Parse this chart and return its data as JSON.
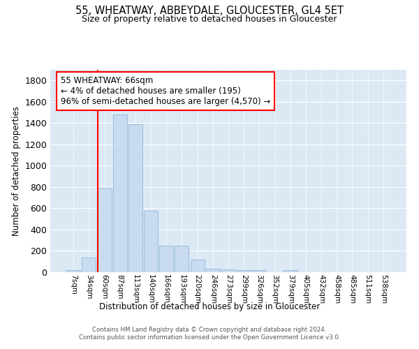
{
  "title": "55, WHEATWAY, ABBEYDALE, GLOUCESTER, GL4 5ET",
  "subtitle": "Size of property relative to detached houses in Gloucester",
  "xlabel": "Distribution of detached houses by size in Gloucester",
  "ylabel": "Number of detached properties",
  "bin_labels": [
    "7sqm",
    "34sqm",
    "60sqm",
    "87sqm",
    "113sqm",
    "140sqm",
    "166sqm",
    "193sqm",
    "220sqm",
    "246sqm",
    "273sqm",
    "299sqm",
    "326sqm",
    "352sqm",
    "379sqm",
    "405sqm",
    "432sqm",
    "458sqm",
    "485sqm",
    "511sqm",
    "538sqm"
  ],
  "bar_values": [
    20,
    135,
    795,
    1480,
    1390,
    575,
    248,
    248,
    118,
    35,
    28,
    18,
    18,
    0,
    18,
    0,
    0,
    0,
    0,
    0,
    0
  ],
  "bar_color": "#c6d9f0",
  "bar_edge_color": "#8db4d9",
  "bar_alpha": 0.85,
  "highlight_bin_index": 2,
  "annotation_text": "55 WHEATWAY: 66sqm\n← 4% of detached houses are smaller (195)\n96% of semi-detached houses are larger (4,570) →",
  "annotation_box_color": "white",
  "annotation_box_edge_color": "red",
  "yticks": [
    0,
    200,
    400,
    600,
    800,
    1000,
    1200,
    1400,
    1600,
    1800
  ],
  "ylim": [
    0,
    1900
  ],
  "bg_color": "#dce9f5",
  "footer_text": "Contains HM Land Registry data © Crown copyright and database right 2024.\nContains public sector information licensed under the Open Government Licence v3.0."
}
